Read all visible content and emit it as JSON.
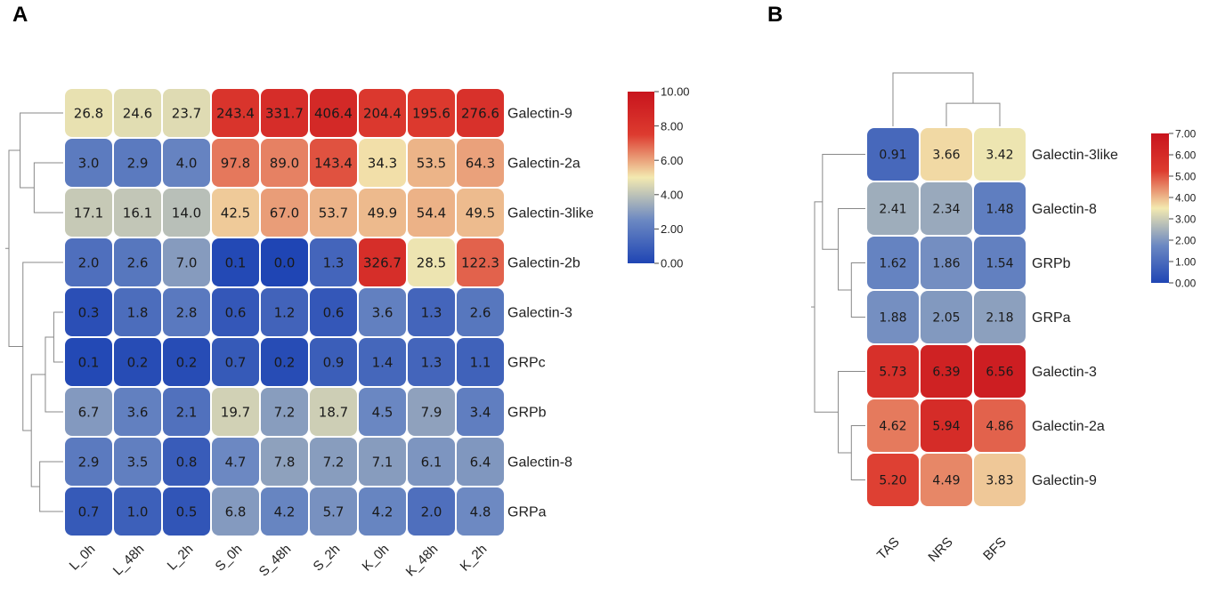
{
  "panels": [
    {
      "id": "A",
      "label": "A"
    },
    {
      "id": "B",
      "label": "B"
    }
  ],
  "chart_data": [
    {
      "type": "heatmap",
      "panel": "A",
      "title": "",
      "rows": [
        "Galectin-9",
        "Galectin-2a",
        "Galectin-3like",
        "Galectin-2b",
        "Galectin-3",
        "GRPc",
        "GRPb",
        "Galectin-8",
        "GRPa"
      ],
      "columns": [
        "L_0h",
        "L_48h",
        "L_2h",
        "S_0h",
        "S_48h",
        "S_2h",
        "K_0h",
        "K_48h",
        "K_2h"
      ],
      "values": [
        [
          26.8,
          24.6,
          23.7,
          243.4,
          331.7,
          406.4,
          204.4,
          195.6,
          276.6
        ],
        [
          3.0,
          2.9,
          4.0,
          97.8,
          89.0,
          143.4,
          34.3,
          53.5,
          64.3
        ],
        [
          17.1,
          16.1,
          14.0,
          42.5,
          67.0,
          53.7,
          49.9,
          54.4,
          49.5
        ],
        [
          2.0,
          2.6,
          7.0,
          0.1,
          0.0,
          1.3,
          326.7,
          28.5,
          122.3
        ],
        [
          0.3,
          1.8,
          2.8,
          0.6,
          1.2,
          0.6,
          3.6,
          1.3,
          2.6
        ],
        [
          0.1,
          0.2,
          0.2,
          0.7,
          0.2,
          0.9,
          1.4,
          1.3,
          1.1
        ],
        [
          6.7,
          3.6,
          2.1,
          19.7,
          7.2,
          18.7,
          4.5,
          7.9,
          3.4
        ],
        [
          2.9,
          3.5,
          0.8,
          4.7,
          7.8,
          7.2,
          7.1,
          6.1,
          6.4
        ],
        [
          0.7,
          1.0,
          0.5,
          6.8,
          4.2,
          5.7,
          4.2,
          2.0,
          4.8
        ]
      ],
      "value_labels": [
        [
          "26.8",
          "24.6",
          "23.7",
          "243.4",
          "331.7",
          "406.4",
          "204.4",
          "195.6",
          "276.6"
        ],
        [
          "3.0",
          "2.9",
          "4.0",
          "97.8",
          "89.0",
          "143.4",
          "34.3",
          "53.5",
          "64.3"
        ],
        [
          "17.1",
          "16.1",
          "14.0",
          "42.5",
          "67.0",
          "53.7",
          "49.9",
          "54.4",
          "49.5"
        ],
        [
          "2.0",
          "2.6",
          "7.0",
          "0.1",
          "0.0",
          "1.3",
          "326.7",
          "28.5",
          "122.3"
        ],
        [
          "0.3",
          "1.8",
          "2.8",
          "0.6",
          "1.2",
          "0.6",
          "3.6",
          "1.3",
          "2.6"
        ],
        [
          "0.1",
          "0.2",
          "0.2",
          "0.7",
          "0.2",
          "0.9",
          "1.4",
          "1.3",
          "1.1"
        ],
        [
          "6.7",
          "3.6",
          "2.1",
          "19.7",
          "7.2",
          "18.7",
          "4.5",
          "7.9",
          "3.4"
        ],
        [
          "2.9",
          "3.5",
          "0.8",
          "4.7",
          "7.8",
          "7.2",
          "7.1",
          "6.1",
          "6.4"
        ],
        [
          "0.7",
          "1.0",
          "0.5",
          "6.8",
          "4.2",
          "5.7",
          "4.2",
          "2.0",
          "4.8"
        ]
      ],
      "color_scale": {
        "note": "cell colors follow a log2(x+1) transform of the labeled values",
        "transform": "log2p1",
        "range": [
          0,
          10
        ],
        "ticks": [
          "0.00",
          "2.00",
          "4.00",
          "6.00",
          "8.00",
          "10.00"
        ],
        "colors": [
          "#1f45b4",
          "#6b88c2",
          "#f3e9b0",
          "#dd3b2f",
          "#c8141d"
        ]
      },
      "row_dendrogram": true,
      "column_dendrogram": false
    },
    {
      "type": "heatmap",
      "panel": "B",
      "title": "",
      "rows": [
        "Galectin-3like",
        "Galectin-8",
        "GRPb",
        "GRPa",
        "Galectin-3",
        "Galectin-2a",
        "Galectin-9"
      ],
      "columns": [
        "TAS",
        "NRS",
        "BFS"
      ],
      "values": [
        [
          0.91,
          3.66,
          3.42
        ],
        [
          2.41,
          2.34,
          1.48
        ],
        [
          1.62,
          1.86,
          1.54
        ],
        [
          1.88,
          2.05,
          2.18
        ],
        [
          5.73,
          6.39,
          6.56
        ],
        [
          4.62,
          5.94,
          4.86
        ],
        [
          5.2,
          4.49,
          3.83
        ]
      ],
      "value_labels": [
        [
          "0.91",
          "3.66",
          "3.42"
        ],
        [
          "2.41",
          "2.34",
          "1.48"
        ],
        [
          "1.62",
          "1.86",
          "1.54"
        ],
        [
          "1.88",
          "2.05",
          "2.18"
        ],
        [
          "5.73",
          "6.39",
          "6.56"
        ],
        [
          "4.62",
          "5.94",
          "4.86"
        ],
        [
          "5.20",
          "4.49",
          "3.83"
        ]
      ],
      "color_scale": {
        "transform": "linear",
        "range": [
          0,
          7
        ],
        "ticks": [
          "0.00",
          "1.00",
          "2.00",
          "3.00",
          "4.00",
          "5.00",
          "6.00",
          "7.00"
        ],
        "colors": [
          "#1f45b4",
          "#6b88c2",
          "#f3e9b0",
          "#dd3b2f",
          "#c8141d"
        ]
      },
      "row_dendrogram": true,
      "column_dendrogram": true
    }
  ]
}
